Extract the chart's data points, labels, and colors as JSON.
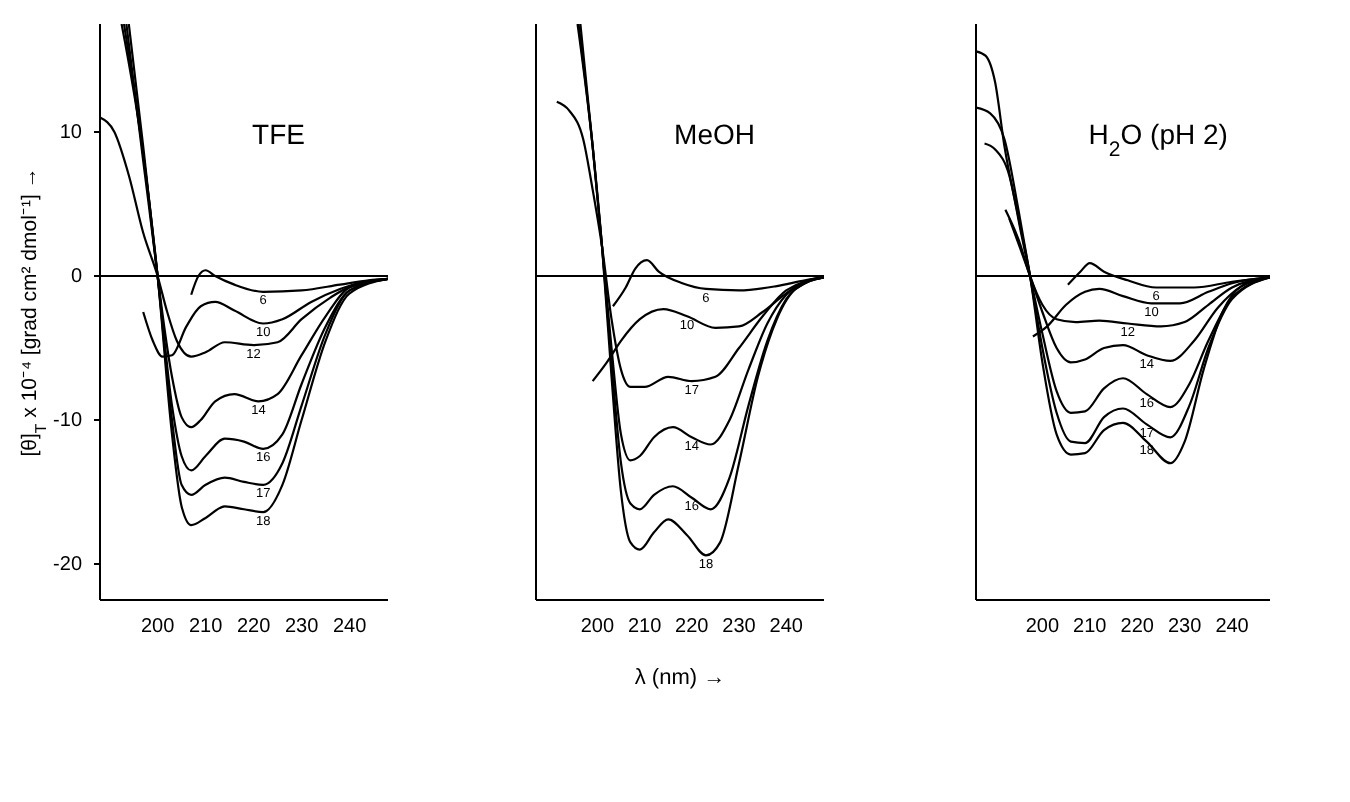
{
  "chart_data": [
    {
      "type": "line",
      "title": "TFE",
      "ylabel": "[θ]$_{T}$ x 10⁻⁴ [grad cm² dmol⁻¹] →",
      "xlim": [
        188,
        248
      ],
      "ylim": [
        -22.5,
        17.5
      ],
      "xticks": [
        200,
        210,
        220,
        230,
        240
      ],
      "yticks": [
        -20,
        -10,
        0,
        10
      ],
      "ref_lines": [
        {
          "axis": "y",
          "value": 0,
          "color": "#000000"
        }
      ],
      "marker": "none",
      "line_style": "solid",
      "grid": false,
      "legend": false,
      "series": [
        {
          "name": "6",
          "color": "#000000",
          "x": [
            207,
            208.5,
            210,
            212,
            216,
            222,
            230,
            238,
            244,
            248
          ],
          "values": [
            -1.3,
            0,
            0.4,
            0,
            -0.6,
            -1.1,
            -1.0,
            -0.6,
            -0.3,
            -0.2
          ]
        },
        {
          "name": "10",
          "color": "#000000",
          "x": [
            197,
            199,
            201,
            203,
            206,
            209,
            212,
            216,
            222,
            226,
            232,
            238,
            243,
            248
          ],
          "values": [
            -2.5,
            -4.5,
            -5.6,
            -5.5,
            -3.5,
            -2.1,
            -1.8,
            -2.4,
            -3.3,
            -3.0,
            -1.8,
            -0.9,
            -0.4,
            -0.2
          ]
        },
        {
          "name": "12",
          "color": "#000000",
          "x": [
            188,
            191,
            194,
            197,
            200,
            202,
            204,
            207,
            210,
            214,
            220,
            225,
            230,
            236,
            241,
            248
          ],
          "values": [
            11,
            10,
            7,
            3,
            0,
            -2.5,
            -4.5,
            -5.6,
            -5.3,
            -4.6,
            -4.8,
            -4.6,
            -3,
            -1.5,
            -0.6,
            -0.2
          ]
        },
        {
          "name": "14",
          "color": "#000000",
          "x": [
            194,
            197,
            200,
            203,
            205,
            207,
            209,
            212,
            216,
            221,
            225,
            230,
            235,
            240,
            248
          ],
          "values": [
            17.5,
            9,
            0,
            -7,
            -9.8,
            -10.5,
            -10,
            -8.7,
            -8.2,
            -8.7,
            -8.2,
            -5.5,
            -2.8,
            -0.8,
            -0.2
          ]
        },
        {
          "name": "16",
          "color": "#000000",
          "x": [
            193.5,
            197,
            200,
            203,
            205,
            207,
            210,
            214,
            218,
            222,
            226,
            230,
            235,
            240,
            248
          ],
          "values": [
            17.5,
            8,
            0,
            -9,
            -12.5,
            -13.5,
            -12.5,
            -11.3,
            -11.5,
            -12,
            -11,
            -7.5,
            -3.5,
            -1,
            -0.2
          ]
        },
        {
          "name": "17",
          "color": "#000000",
          "x": [
            193,
            197,
            200,
            203,
            205,
            207,
            210,
            214,
            218,
            222,
            226,
            230,
            235,
            240,
            248
          ],
          "values": [
            17.5,
            8.5,
            0,
            -10,
            -14.5,
            -15.2,
            -14.5,
            -14.0,
            -14.3,
            -14.5,
            -13,
            -9,
            -4,
            -1,
            -0.2
          ]
        },
        {
          "name": "18",
          "color": "#000000",
          "x": [
            192.5,
            197,
            200,
            203,
            205,
            207,
            210,
            214,
            218,
            222,
            226,
            230,
            235,
            240,
            248
          ],
          "values": [
            17.5,
            8.5,
            0,
            -11,
            -16,
            -17.3,
            -16.8,
            -16,
            -16.2,
            -16.4,
            -14.5,
            -10,
            -4.5,
            -1.2,
            -0.2
          ]
        }
      ]
    },
    {
      "type": "line",
      "title": "MeOH",
      "xlabel": "λ (nm) →",
      "xlim": [
        187,
        248
      ],
      "ylim": [
        -22.5,
        17.5
      ],
      "xticks": [
        200,
        210,
        220,
        230,
        240
      ],
      "tick_labels": "x",
      "ref_lines": [
        {
          "axis": "y",
          "value": 0,
          "color": "#000000"
        }
      ],
      "marker": "none",
      "line_style": "solid",
      "grid": false,
      "legend": false,
      "series": [
        {
          "name": "6",
          "color": "#000000",
          "x": [
            203.3,
            206,
            208,
            210.5,
            213,
            218,
            223,
            230,
            238,
            244,
            248
          ],
          "values": [
            -2.1,
            -0.8,
            0.5,
            1.1,
            0.3,
            -0.5,
            -0.9,
            -1.0,
            -0.7,
            -0.3,
            -0.1
          ]
        },
        {
          "name": "10",
          "color": "#000000",
          "x": [
            199,
            202,
            205,
            209,
            214,
            219,
            225,
            230,
            235,
            240,
            244,
            248
          ],
          "values": [
            -7.3,
            -6.0,
            -4.5,
            -3.0,
            -2.3,
            -2.8,
            -3.6,
            -3.5,
            -2.5,
            -1.2,
            -0.4,
            -0.1
          ]
        },
        {
          "name": "17",
          "color": "#000000",
          "x": [
            191.4,
            194,
            197,
            199,
            201,
            203,
            205,
            207,
            210,
            215,
            220,
            225,
            230,
            235,
            240,
            248
          ],
          "values": [
            12.1,
            11.5,
            9.5,
            6,
            2,
            -3,
            -6.5,
            -7.7,
            -7.7,
            -7,
            -7.3,
            -7,
            -5,
            -2.8,
            -1,
            -0.1
          ]
        },
        {
          "name": "14",
          "color": "#000000",
          "x": [
            196.4,
            199,
            201,
            203,
            205,
            207,
            209,
            212,
            216,
            220,
            224,
            228,
            232,
            236,
            240,
            244,
            248
          ],
          "values": [
            17.5,
            9,
            2,
            -5,
            -11,
            -12.8,
            -12.5,
            -11.2,
            -10.5,
            -11.2,
            -11.7,
            -10,
            -6.5,
            -3.3,
            -1.3,
            -0.4,
            -0.1
          ]
        },
        {
          "name": "16",
          "color": "#000000",
          "x": [
            196,
            199,
            201,
            203,
            205,
            207,
            209,
            212,
            216,
            220,
            224,
            228,
            232,
            236,
            240,
            244,
            248
          ],
          "values": [
            17.5,
            9,
            2,
            -6,
            -13,
            -15.8,
            -16.2,
            -15.2,
            -14.6,
            -15.4,
            -16.2,
            -14,
            -9,
            -4.5,
            -1.6,
            -0.5,
            -0.1
          ]
        },
        {
          "name": "18",
          "color": "#000000",
          "x": [
            195.8,
            199,
            201,
            203,
            205,
            207,
            209,
            212,
            215,
            219,
            223,
            226,
            230,
            234,
            238,
            242,
            248
          ],
          "values": [
            17.5,
            9,
            2,
            -7,
            -15,
            -18.5,
            -19,
            -17.8,
            -16.9,
            -18,
            -19.4,
            -18.5,
            -13,
            -7,
            -3,
            -0.9,
            -0.1
          ]
        }
      ]
    },
    {
      "type": "line",
      "title": "H$_{2}$O (pH 2)",
      "xlim": [
        186,
        248
      ],
      "ylim": [
        -22.5,
        17.5
      ],
      "xticks": [
        200,
        210,
        220,
        230,
        240
      ],
      "tick_labels": "x",
      "ref_lines": [
        {
          "axis": "y",
          "value": 0,
          "color": "#000000"
        }
      ],
      "marker": "none",
      "line_style": "solid",
      "grid": false,
      "legend": false,
      "series": [
        {
          "name": "6",
          "color": "#000000",
          "x": [
            205.4,
            208,
            210,
            213,
            218,
            224,
            232,
            240,
            248
          ],
          "values": [
            -0.6,
            0.3,
            0.9,
            0.3,
            -0.3,
            -0.8,
            -0.8,
            -0.4,
            -0.1
          ]
        },
        {
          "name": "10",
          "color": "#000000",
          "x": [
            198,
            201,
            205,
            209,
            212,
            217,
            223,
            229,
            235,
            240,
            248
          ],
          "values": [
            -4.2,
            -3.5,
            -2,
            -1.1,
            -0.9,
            -1.4,
            -1.9,
            -1.9,
            -1.1,
            -0.5,
            -0.1
          ]
        },
        {
          "name": "12",
          "color": "#000000",
          "x": [
            192.2,
            195,
            197.4,
            200,
            203,
            207,
            212,
            218,
            225,
            230,
            235,
            240,
            248
          ],
          "values": [
            4.6,
            2.5,
            0,
            -2,
            -3,
            -3.2,
            -3.1,
            -3.3,
            -3.5,
            -3.2,
            -2,
            -0.8,
            -0.1
          ]
        },
        {
          "name": "14",
          "color": "#000000",
          "x": [
            193,
            197.4,
            200,
            203,
            206,
            209,
            213,
            217,
            222,
            227,
            232,
            237,
            242,
            248
          ],
          "values": [
            4,
            0,
            -2.5,
            -5,
            -6,
            -5.8,
            -5,
            -4.8,
            -5.5,
            -5.9,
            -4.5,
            -2.2,
            -0.7,
            -0.1
          ]
        },
        {
          "name": "16",
          "color": "#000000",
          "x": [
            187.8,
            190,
            193,
            195.5,
            197.4,
            200,
            203,
            206,
            209,
            213,
            217,
            222,
            227,
            231,
            235,
            240,
            248
          ],
          "values": [
            9.2,
            8.8,
            7,
            3,
            0,
            -4,
            -8,
            -9.5,
            -9.4,
            -7.8,
            -7.1,
            -8.2,
            -9.1,
            -7.5,
            -4.5,
            -1.5,
            -0.1
          ]
        },
        {
          "name": "17",
          "color": "#000000",
          "x": [
            186,
            189,
            192,
            195,
            197.4,
            200,
            203,
            206,
            209,
            213,
            217,
            222,
            227,
            231,
            235,
            240,
            248
          ],
          "values": [
            11.7,
            11.3,
            9.5,
            4.5,
            0,
            -5,
            -9.5,
            -11.5,
            -11.6,
            -9.8,
            -9.2,
            -10.3,
            -11.2,
            -9,
            -5,
            -1.6,
            -0.1
          ]
        },
        {
          "name": "18",
          "color": "#000000",
          "x": [
            186,
            188,
            190,
            192,
            195,
            197.4,
            200,
            203,
            206,
            209,
            213,
            217,
            222,
            227,
            230,
            234,
            238,
            242,
            248
          ],
          "values": [
            15.6,
            15.3,
            13.5,
            9,
            4,
            0,
            -6,
            -11,
            -12.4,
            -12.3,
            -10.7,
            -10.2,
            -11.5,
            -13,
            -11.5,
            -6.5,
            -2.5,
            -0.7,
            -0.1
          ]
        }
      ]
    }
  ]
}
